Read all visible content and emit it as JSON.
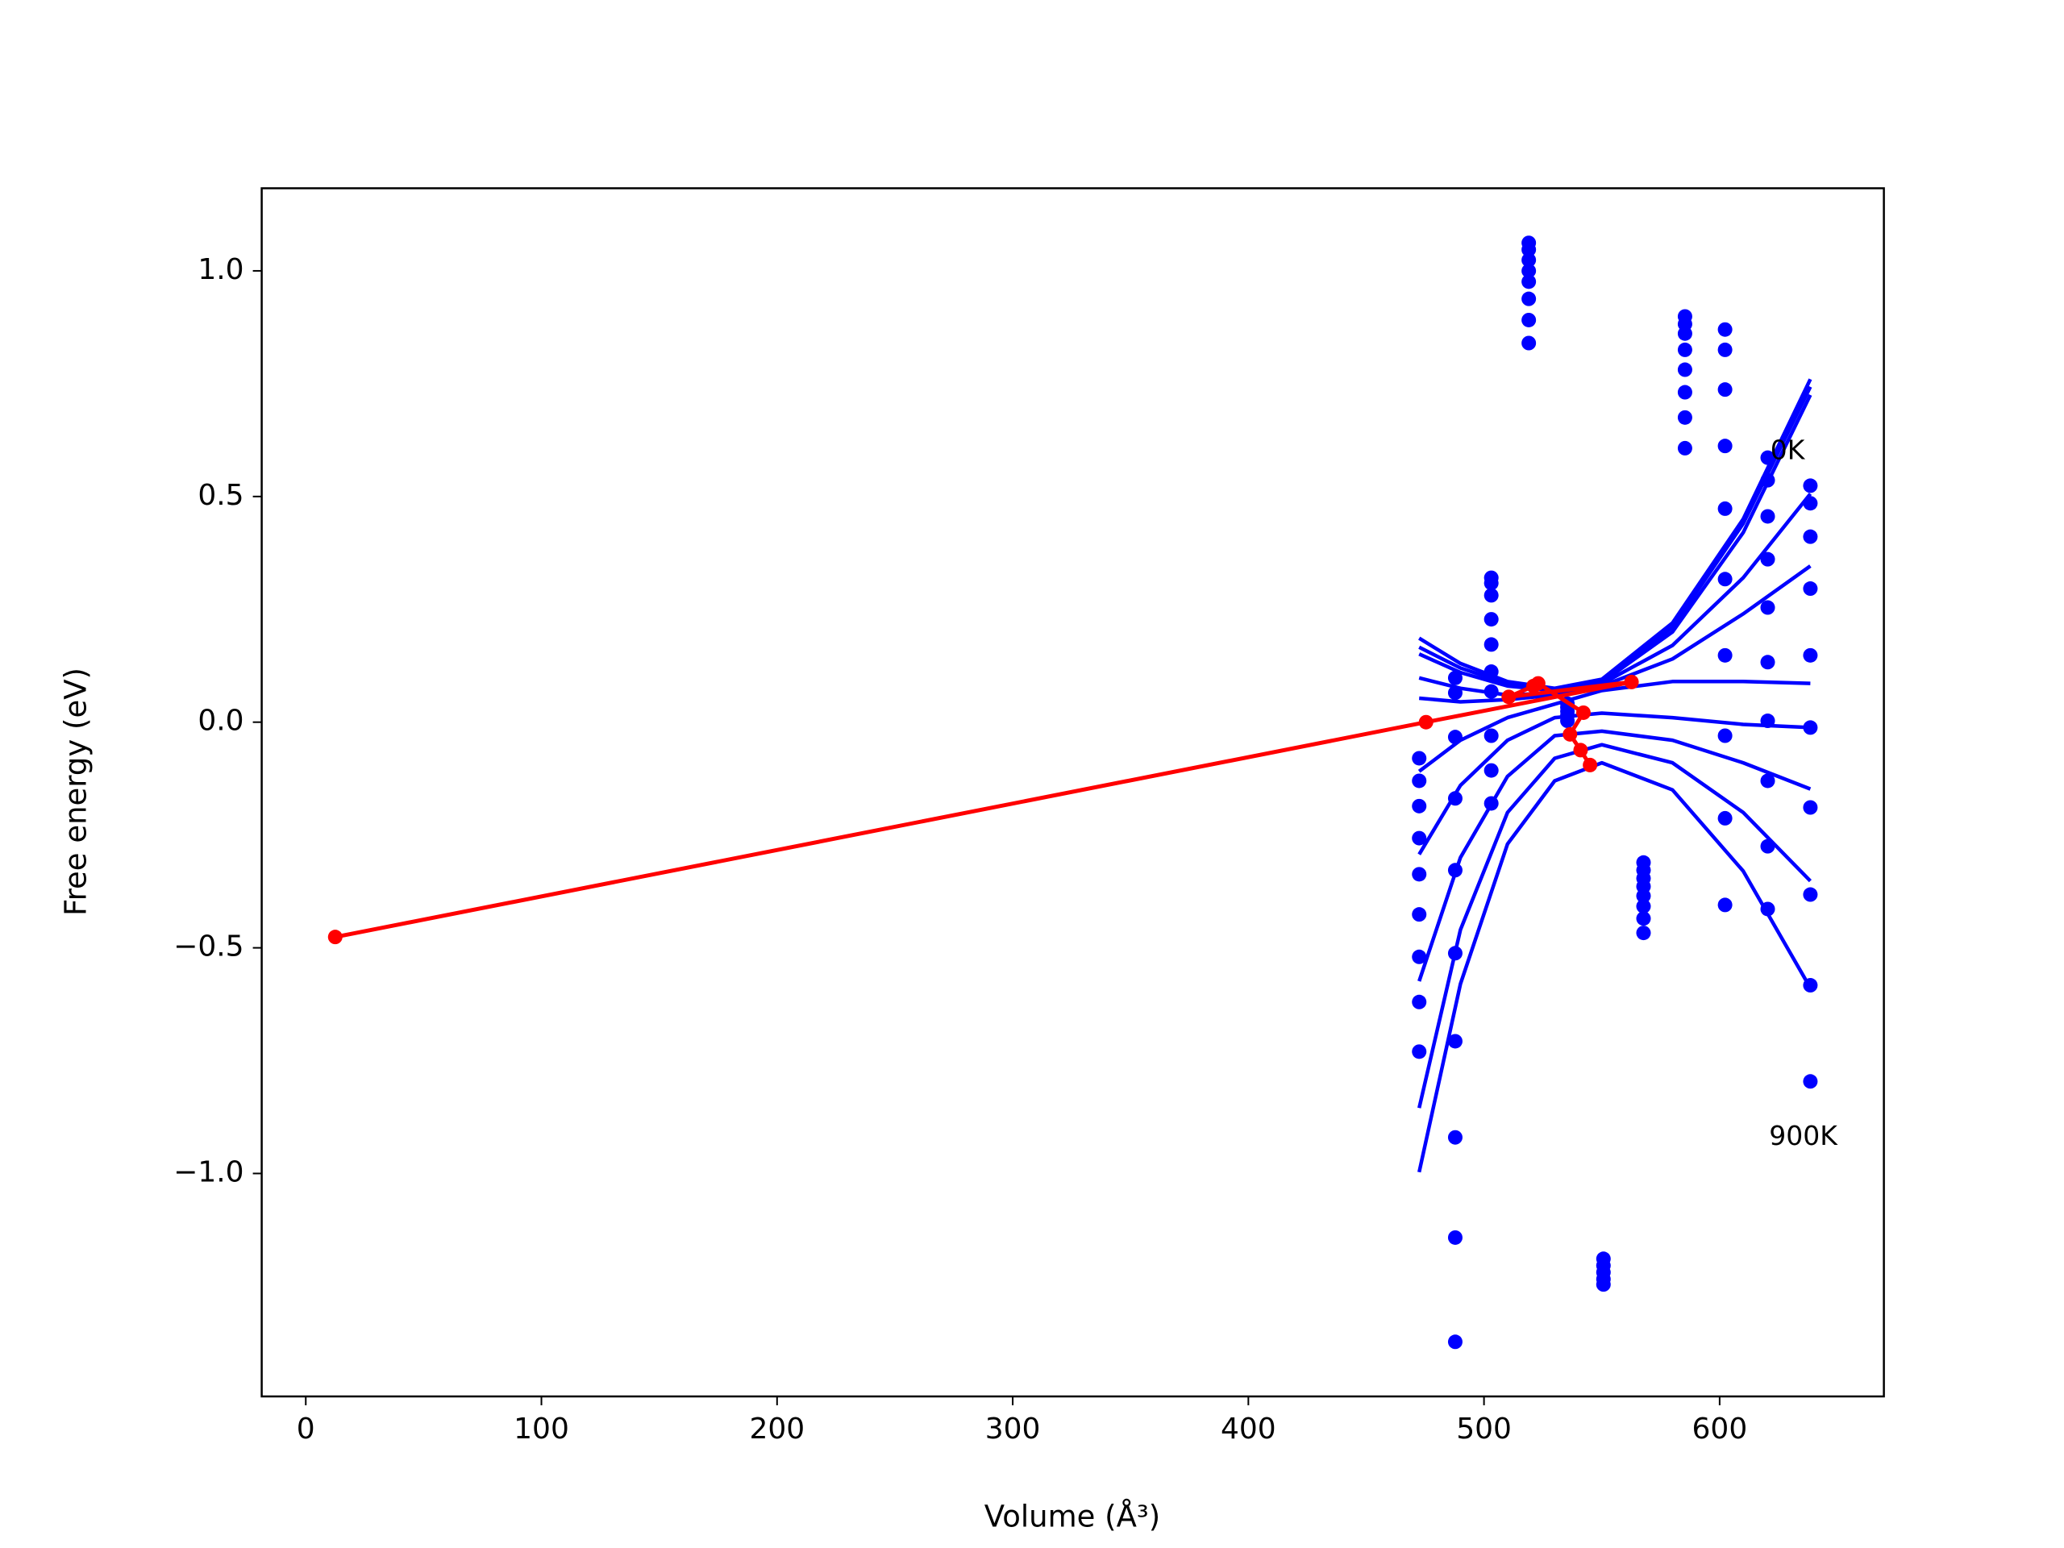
{
  "chart_data": {
    "type": "scatter",
    "xlabel": "Volume (Å³)",
    "ylabel": "Free energy (eV)",
    "xlim": [
      -18.7,
      669.7
    ],
    "ylim": [
      -1.494,
      1.183
    ],
    "xticks": [
      0,
      100,
      200,
      300,
      400,
      500,
      600
    ],
    "yticks": [
      {
        "value": -1.0,
        "label": "−1.0"
      },
      {
        "value": -0.5,
        "label": "−0.5"
      },
      {
        "value": 0.0,
        "label": "0.0"
      },
      {
        "value": 0.5,
        "label": "0.5"
      },
      {
        "value": 1.0,
        "label": "1.0"
      }
    ],
    "points": {
      "color": "#0000ff",
      "x": [
        472.5,
        472.5,
        472.5,
        472.5,
        472.5,
        472.5,
        472.5,
        472.5,
        472.5,
        487.8,
        487.8,
        487.8,
        487.8,
        487.8,
        487.8,
        487.8,
        487.8,
        487.8,
        487.8,
        503.1,
        503.1,
        503.1,
        503.1,
        503.1,
        503.1,
        503.1,
        503.1,
        503.1,
        503.1,
        519,
        519,
        519,
        519,
        519,
        519,
        519,
        519,
        535.4,
        535.4,
        535.4,
        535.4,
        535.4,
        550.7,
        550.7,
        550.7,
        550.7,
        550.7,
        567.7,
        567.7,
        567.7,
        567.7,
        567.7,
        567.7,
        567.7,
        567.7,
        585.3,
        585.3,
        585.3,
        585.3,
        585.3,
        585.3,
        585.3,
        585.3,
        602.3,
        602.3,
        602.3,
        602.3,
        602.3,
        602.3,
        602.3,
        602.3,
        602.3,
        602.3,
        620.4,
        620.4,
        620.4,
        620.4,
        620.4,
        620.4,
        620.4,
        620.4,
        620.4,
        620.4,
        638.5,
        638.5,
        638.5,
        638.5,
        638.5,
        638.5,
        638.5,
        638.5,
        638.5,
        638.5
      ],
      "y": [
        -0.08,
        -0.13,
        -0.186,
        -0.257,
        -0.337,
        -0.426,
        -0.52,
        -0.62,
        -0.73,
        0.098,
        0.065,
        -0.033,
        -0.169,
        -0.328,
        -0.512,
        -0.707,
        -0.92,
        -1.142,
        -1.373,
        0.32,
        0.308,
        0.281,
        0.228,
        0.172,
        0.112,
        0.068,
        -0.03,
        -0.107,
        -0.18,
        1.062,
        1.047,
        1.024,
        1.0,
        0.976,
        0.938,
        0.891,
        0.84,
        0.041,
        0.033,
        0.024,
        0.015,
        0.003,
        -1.189,
        -1.204,
        -1.219,
        -1.234,
        -1.246,
        -0.311,
        -0.328,
        -0.346,
        -0.364,
        -0.385,
        -0.408,
        -0.435,
        -0.467,
        0.899,
        0.882,
        0.861,
        0.825,
        0.781,
        0.731,
        0.675,
        0.607,
        0.87,
        0.825,
        0.737,
        0.612,
        0.473,
        0.317,
        0.148,
        -0.03,
        -0.213,
        -0.405,
        0.586,
        0.536,
        0.456,
        0.361,
        0.254,
        0.133,
        0.003,
        -0.13,
        -0.275,
        -0.414,
        0.524,
        0.485,
        0.411,
        0.296,
        0.148,
        -0.012,
        -0.189,
        -0.382,
        -0.583,
        -0.796
      ]
    },
    "fit_x": [
      472.5,
      490,
      510,
      530,
      550,
      580,
      610,
      638.5
    ],
    "curves": [
      {
        "color": "#0000ff",
        "values": [
          0.186,
          0.13,
          0.09,
          0.075,
          0.095,
          0.22,
          0.45,
          0.76
        ]
      },
      {
        "color": "#0000ff",
        "values": [
          0.166,
          0.12,
          0.085,
          0.072,
          0.09,
          0.21,
          0.44,
          0.743
        ]
      },
      {
        "color": "#0000ff",
        "values": [
          0.151,
          0.11,
          0.08,
          0.07,
          0.088,
          0.2,
          0.42,
          0.725
        ]
      },
      {
        "color": "#0000ff",
        "values": [
          0.098,
          0.075,
          0.06,
          0.065,
          0.085,
          0.17,
          0.32,
          0.506
        ]
      },
      {
        "color": "#0000ff",
        "values": [
          0.053,
          0.045,
          0.05,
          0.06,
          0.08,
          0.14,
          0.24,
          0.346
        ]
      },
      {
        "color": "#0000ff",
        "values": [
          -0.109,
          -0.04,
          0.01,
          0.04,
          0.07,
          0.09,
          0.09,
          0.086
        ]
      },
      {
        "color": "#0000ff",
        "values": [
          -0.293,
          -0.14,
          -0.04,
          0.01,
          0.02,
          0.01,
          -0.005,
          -0.012
        ]
      },
      {
        "color": "#0000ff",
        "values": [
          -0.574,
          -0.3,
          -0.12,
          -0.03,
          -0.02,
          -0.04,
          -0.09,
          -0.148
        ]
      },
      {
        "color": "#0000ff",
        "values": [
          -0.855,
          -0.46,
          -0.2,
          -0.08,
          -0.05,
          -0.09,
          -0.2,
          -0.352
        ]
      },
      {
        "color": "#0000ff",
        "values": [
          -0.997,
          -0.58,
          -0.27,
          -0.13,
          -0.09,
          -0.15,
          -0.33,
          -0.589
        ]
      }
    ],
    "minima": {
      "color": "#ff0000",
      "x": [
        12.5,
        475.4,
        562.6,
        510.5,
        521,
        523,
        542.2,
        536.5,
        541,
        545
      ],
      "y": [
        -0.476,
        0,
        0.089,
        0.056,
        0.08,
        0.086,
        0.021,
        -0.027,
        -0.062,
        -0.095
      ]
    },
    "annotations": [
      {
        "text": "0K",
        "x": 621.5,
        "y": 0.6
      },
      {
        "text": "900K",
        "x": 621,
        "y": -0.92
      }
    ]
  }
}
